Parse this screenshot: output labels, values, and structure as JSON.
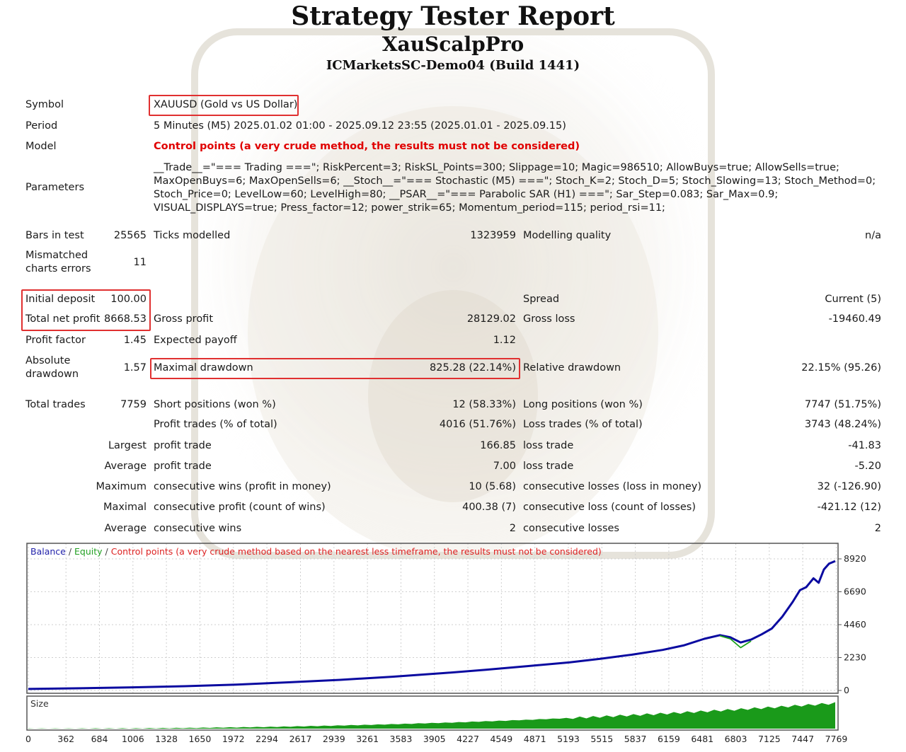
{
  "header": {
    "title": "Strategy Tester Report",
    "expert": "XauScalpPro",
    "server": "ICMarketsSC-Demo04 (Build 1441)"
  },
  "settings": {
    "symbol_label": "Symbol",
    "symbol_value": "XAUUSD (Gold vs US Dollar)",
    "period_label": "Period",
    "period_value": "5 Minutes (M5) 2025.01.02 01:00 - 2025.09.12 23:55 (2025.01.01 - 2025.09.15)",
    "model_label": "Model",
    "model_value": "Control points (a very crude method, the results must not be considered)",
    "parameters_label": "Parameters",
    "parameters_lines": [
      "__Trade__=\"=== Trading ===\"; RiskPercent=3; RiskSL_Points=300; Slippage=10; Magic=986510; AllowBuys=true; AllowSells=true;",
      "MaxOpenBuys=6; MaxOpenSells=6; __Stoch__=\"=== Stochastic (M5) ===\"; Stoch_K=2; Stoch_D=5; Stoch_Slowing=13; Stoch_Method=0;",
      "Stoch_Price=0; LevelLow=60; LevelHigh=80; __PSAR__=\"=== Parabolic SAR (H1) ===\"; Sar_Step=0.083; Sar_Max=0.9;",
      "VISUAL_DISPLAYS=true; Press_factor=12; power_strik=65; Momentum_period=115; period_rsi=11;"
    ]
  },
  "stats": {
    "bars_label": "Bars in test",
    "bars_value": "25565",
    "ticks_label": "Ticks modelled",
    "ticks_value": "1323959",
    "quality_label": "Modelling quality",
    "quality_value": "n/a",
    "mismatch_label_1": "Mismatched",
    "mismatch_label_2": "charts errors",
    "mismatch_value": "11",
    "deposit_label": "Initial deposit",
    "deposit_value": "100.00",
    "spread_label": "Spread",
    "spread_value": "Current (5)",
    "net_label": "Total net profit",
    "net_value": "8668.53",
    "gross_profit_label": "Gross profit",
    "gross_profit_value": "28129.02",
    "gross_loss_label": "Gross loss",
    "gross_loss_value": "-19460.49",
    "pf_label": "Profit factor",
    "pf_value": "1.45",
    "ep_label": "Expected payoff",
    "ep_value": "1.12",
    "abs_dd_label_1": "Absolute",
    "abs_dd_label_2": "drawdown",
    "abs_dd_value": "1.57",
    "max_dd_label": "Maximal drawdown",
    "max_dd_value": "825.28 (22.14%)",
    "rel_dd_label": "Relative drawdown",
    "rel_dd_value": "22.15% (95.26)",
    "trades_label": "Total trades",
    "trades_value": "7759",
    "short_label": "Short positions (won %)",
    "short_value": "12 (58.33%)",
    "long_label": "Long positions (won %)",
    "long_value": "7747 (51.75%)",
    "profit_trades_label": "Profit trades (% of total)",
    "profit_trades_value": "4016 (51.76%)",
    "loss_trades_label": "Loss trades (% of total)",
    "loss_trades_value": "3743 (48.24%)",
    "largest_label": "Largest",
    "largest_profit_label": "profit trade",
    "largest_profit_value": "166.85",
    "largest_loss_label": "loss trade",
    "largest_loss_value": "-41.83",
    "average_label": "Average",
    "average_profit_label": "profit trade",
    "average_profit_value": "7.00",
    "average_loss_label": "loss trade",
    "average_loss_value": "-5.20",
    "maximum_label": "Maximum",
    "max_wins_label": "consecutive wins (profit in money)",
    "max_wins_value": "10 (5.68)",
    "max_losses_label": "consecutive losses (loss in money)",
    "max_losses_value": "32 (-126.90)",
    "maximal_label": "Maximal",
    "maximal_profit_label": "consecutive profit (count of wins)",
    "maximal_profit_value": "400.38 (7)",
    "maximal_loss_label": "consecutive loss (count of losses)",
    "maximal_loss_value": "-421.12 (12)",
    "avg_cons_label": "Average",
    "avg_cons_wins_label": "consecutive wins",
    "avg_cons_wins_value": "2",
    "avg_cons_losses_label": "consecutive losses",
    "avg_cons_losses_value": "2"
  },
  "chart_data": {
    "type": "line",
    "legend": {
      "balance": "Balance",
      "sep1": " / ",
      "equity": "Equity",
      "sep2": " / ",
      "note": "Control points (a very crude method based on the nearest less timeframe, the results must not be considered)"
    },
    "y_ticks": [
      "8920",
      "6690",
      "4460",
      "2230",
      "0"
    ],
    "ylim": [
      0,
      8920
    ],
    "x_ticks": [
      "0",
      "362",
      "684",
      "1006",
      "1328",
      "1650",
      "1972",
      "2294",
      "2617",
      "2939",
      "3261",
      "3583",
      "3905",
      "4227",
      "4549",
      "4871",
      "5193",
      "5515",
      "5837",
      "6159",
      "6481",
      "6803",
      "7125",
      "7447",
      "7769"
    ],
    "xlim": [
      0,
      7759
    ],
    "series": [
      {
        "name": "Balance",
        "color": "#0a0aa0",
        "x": [
          0,
          500,
          1000,
          1500,
          2000,
          2500,
          3000,
          3500,
          4000,
          4400,
          4800,
          5200,
          5500,
          5800,
          6100,
          6300,
          6500,
          6650,
          6750,
          6850,
          6950,
          7050,
          7150,
          7250,
          7350,
          7420,
          7480,
          7550,
          7600,
          7650,
          7700,
          7759
        ],
        "y": [
          100,
          150,
          210,
          290,
          400,
          550,
          720,
          930,
          1180,
          1400,
          1650,
          1900,
          2150,
          2420,
          2750,
          3050,
          3500,
          3750,
          3600,
          3250,
          3450,
          3800,
          4200,
          5000,
          6000,
          6800,
          7000,
          7600,
          7300,
          8200,
          8600,
          8770
        ]
      },
      {
        "name": "Equity",
        "color": "#1aa01a",
        "x": [
          6650,
          6750,
          6850,
          6950
        ],
        "y": [
          3700,
          3500,
          2900,
          3350
        ]
      }
    ]
  },
  "volume_chart": {
    "label": "Size",
    "color": "#1a9a1a"
  }
}
